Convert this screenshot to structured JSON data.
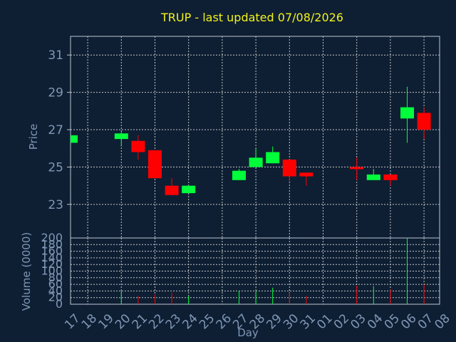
{
  "chart_data": {
    "type": "candlestick",
    "title": "TRUP - last updated 07/08/2026",
    "xlabel": "Day",
    "price_ylabel": "Price",
    "volume_ylabel": "Volume (0000)",
    "x_labels": [
      "17",
      "18",
      "19",
      "20",
      "21",
      "22",
      "23",
      "24",
      "25",
      "26",
      "27",
      "28",
      "29",
      "30",
      "31",
      "01",
      "02",
      "03",
      "04",
      "05",
      "06",
      "07",
      "08"
    ],
    "price_ylim": [
      21.2,
      32.0
    ],
    "price_ticks": [
      "23",
      "25",
      "27",
      "29",
      "31"
    ],
    "volume_ylim": [
      0,
      200
    ],
    "volume_ticks": [
      "0",
      "20",
      "40",
      "60",
      "80",
      "100",
      "120",
      "140",
      "160",
      "180",
      "200"
    ],
    "up_color": "#00ff3a",
    "down_color": "#ff0000",
    "candles": [
      {
        "day": "17",
        "open": 26.3,
        "high": 26.7,
        "low": 26.3,
        "close": 26.7,
        "volume": 0
      },
      {
        "day": "20",
        "open": 26.5,
        "high": 26.9,
        "low": 26.1,
        "close": 26.8,
        "volume": 40
      },
      {
        "day": "21",
        "open": 26.4,
        "high": 26.7,
        "low": 25.4,
        "close": 25.8,
        "volume": 25
      },
      {
        "day": "22",
        "open": 25.9,
        "high": 25.9,
        "low": 24.4,
        "close": 24.4,
        "volume": 30
      },
      {
        "day": "23",
        "open": 24.0,
        "high": 24.4,
        "low": 23.5,
        "close": 23.5,
        "volume": 35
      },
      {
        "day": "24",
        "open": 23.6,
        "high": 24.0,
        "low": 23.6,
        "close": 24.0,
        "volume": 25
      },
      {
        "day": "27",
        "open": 24.3,
        "high": 24.9,
        "low": 24.3,
        "close": 24.8,
        "volume": 40
      },
      {
        "day": "28",
        "open": 25.0,
        "high": 26.0,
        "low": 25.0,
        "close": 25.5,
        "volume": 40
      },
      {
        "day": "29",
        "open": 25.2,
        "high": 26.1,
        "low": 25.2,
        "close": 25.8,
        "volume": 50
      },
      {
        "day": "30",
        "open": 25.4,
        "high": 25.4,
        "low": 24.2,
        "close": 24.5,
        "volume": 35
      },
      {
        "day": "31",
        "open": 24.7,
        "high": 24.7,
        "low": 24.0,
        "close": 24.5,
        "volume": 25
      },
      {
        "day": "03",
        "open": 25.0,
        "high": 25.5,
        "low": 24.3,
        "close": 24.9,
        "volume": 55
      },
      {
        "day": "04",
        "open": 24.3,
        "high": 24.9,
        "low": 24.3,
        "close": 24.6,
        "volume": 55
      },
      {
        "day": "05",
        "open": 24.6,
        "high": 24.6,
        "low": 24.0,
        "close": 24.3,
        "volume": 45
      },
      {
        "day": "06",
        "open": 27.6,
        "high": 29.3,
        "low": 26.3,
        "close": 28.2,
        "volume": 200
      },
      {
        "day": "07",
        "open": 27.9,
        "high": 28.2,
        "low": 26.5,
        "close": 27.0,
        "volume": 60
      }
    ]
  }
}
